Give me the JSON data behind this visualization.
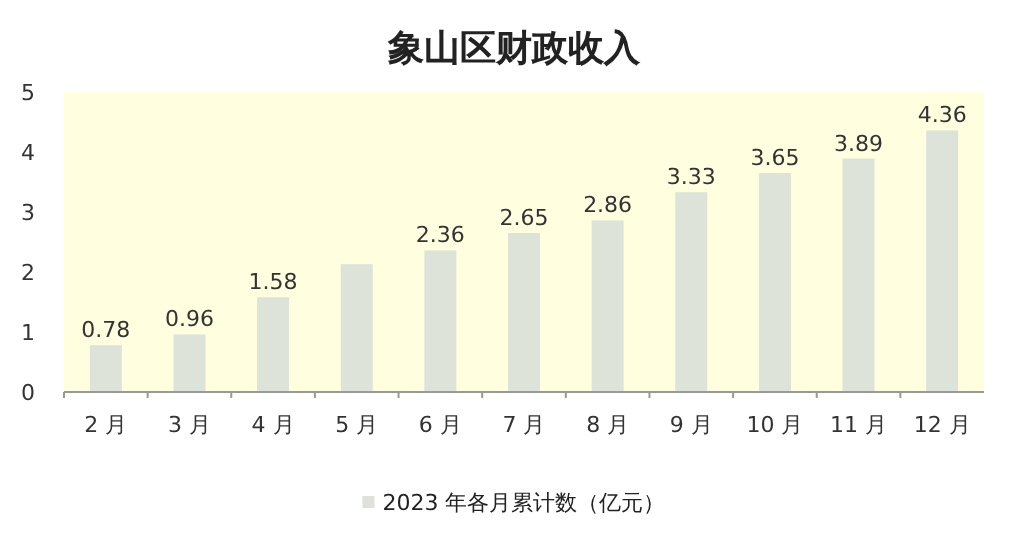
{
  "chart_data": {
    "type": "bar",
    "title": "象山区财政收入",
    "categories": [
      "2 月",
      "3 月",
      "4 月",
      "5 月",
      "6 月",
      "7 月",
      "8 月",
      "9 月",
      "10 月",
      "11 月",
      "12 月"
    ],
    "series": [
      {
        "name": "2023 年各月累计数（亿元）",
        "color": "#dde3d8",
        "values": [
          0.78,
          0.96,
          1.58,
          2.13,
          2.36,
          2.65,
          2.86,
          3.33,
          3.65,
          3.89,
          4.36
        ],
        "value_labels": [
          "0.78",
          "0.96",
          "1.58",
          null,
          "2.36",
          "2.65",
          "2.86",
          "3.33",
          "3.65",
          "3.89",
          "4.36"
        ]
      }
    ],
    "ylim": [
      0,
      5
    ],
    "yticks": [
      0,
      1,
      2,
      3,
      4,
      5
    ],
    "grid": false,
    "legend": "bottom"
  }
}
